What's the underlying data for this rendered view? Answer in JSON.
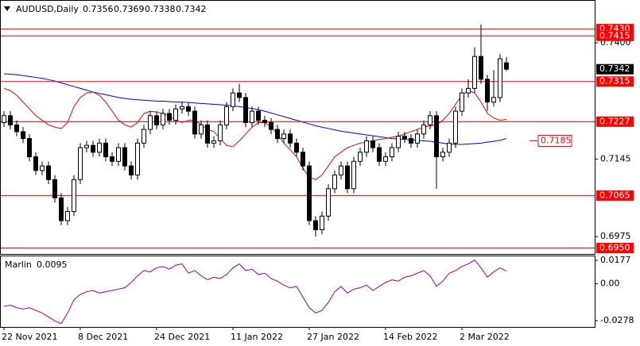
{
  "chart_data": [
    {
      "type": "candlestick",
      "title": "AUDUSD,Daily",
      "open": [
        0.7225,
        0.724,
        0.722,
        0.7205,
        0.719,
        0.715,
        0.712,
        0.713,
        0.71,
        0.706,
        0.701,
        0.703,
        0.71,
        0.717,
        0.7175,
        0.716,
        0.718,
        0.715,
        0.714,
        0.717,
        0.713,
        0.711,
        0.718,
        0.721,
        0.724,
        0.722,
        0.7245,
        0.723,
        0.7255,
        0.726,
        0.725,
        0.72,
        0.722,
        0.718,
        0.7185,
        0.722,
        0.726,
        0.729,
        0.728,
        0.7225,
        0.725,
        0.723,
        0.7225,
        0.721,
        0.719,
        0.72,
        0.718,
        0.716,
        0.713,
        0.701,
        0.699,
        0.702,
        0.708,
        0.711,
        0.713,
        0.708,
        0.714,
        0.716,
        0.7185,
        0.717,
        0.714,
        0.715,
        0.717,
        0.7195,
        0.719,
        0.718,
        0.72,
        0.722,
        0.724,
        0.715,
        0.716,
        0.718,
        0.725,
        0.729,
        0.73,
        0.737,
        0.732,
        0.727,
        0.728,
        0.7356
      ],
      "high": [
        0.725,
        0.725,
        0.723,
        0.7215,
        0.72,
        0.716,
        0.714,
        0.714,
        0.711,
        0.707,
        0.704,
        0.711,
        0.718,
        0.7185,
        0.7185,
        0.719,
        0.719,
        0.716,
        0.718,
        0.718,
        0.714,
        0.719,
        0.722,
        0.725,
        0.725,
        0.7255,
        0.7255,
        0.7265,
        0.727,
        0.727,
        0.726,
        0.723,
        0.723,
        0.7195,
        0.723,
        0.727,
        0.73,
        0.731,
        0.729,
        0.726,
        0.726,
        0.724,
        0.7235,
        0.722,
        0.721,
        0.721,
        0.719,
        0.717,
        0.714,
        0.702,
        0.703,
        0.709,
        0.712,
        0.714,
        0.714,
        0.715,
        0.717,
        0.7195,
        0.7195,
        0.718,
        0.716,
        0.718,
        0.7205,
        0.7205,
        0.72,
        0.721,
        0.723,
        0.725,
        0.725,
        0.717,
        0.719,
        0.726,
        0.73,
        0.732,
        0.739,
        0.744,
        0.733,
        0.734,
        0.7375,
        0.7369
      ],
      "low": [
        0.7215,
        0.721,
        0.7195,
        0.718,
        0.714,
        0.711,
        0.711,
        0.709,
        0.705,
        0.7,
        0.7,
        0.702,
        0.709,
        0.716,
        0.715,
        0.715,
        0.714,
        0.713,
        0.713,
        0.712,
        0.71,
        0.71,
        0.717,
        0.72,
        0.721,
        0.721,
        0.722,
        0.722,
        0.7245,
        0.724,
        0.719,
        0.719,
        0.717,
        0.717,
        0.7175,
        0.721,
        0.725,
        0.727,
        0.7215,
        0.7215,
        0.722,
        0.7215,
        0.72,
        0.718,
        0.718,
        0.717,
        0.715,
        0.712,
        0.7,
        0.6975,
        0.698,
        0.701,
        0.707,
        0.71,
        0.707,
        0.707,
        0.713,
        0.715,
        0.716,
        0.713,
        0.713,
        0.714,
        0.716,
        0.718,
        0.717,
        0.717,
        0.719,
        0.721,
        0.708,
        0.714,
        0.715,
        0.717,
        0.724,
        0.728,
        0.729,
        0.731,
        0.725,
        0.726,
        0.727,
        0.7338
      ],
      "close": [
        0.724,
        0.722,
        0.7205,
        0.719,
        0.715,
        0.712,
        0.713,
        0.71,
        0.706,
        0.701,
        0.703,
        0.71,
        0.717,
        0.7175,
        0.716,
        0.718,
        0.715,
        0.714,
        0.717,
        0.713,
        0.711,
        0.718,
        0.721,
        0.724,
        0.722,
        0.7245,
        0.723,
        0.7255,
        0.726,
        0.725,
        0.72,
        0.722,
        0.718,
        0.7185,
        0.722,
        0.726,
        0.729,
        0.728,
        0.7225,
        0.725,
        0.723,
        0.7225,
        0.721,
        0.719,
        0.72,
        0.718,
        0.716,
        0.713,
        0.701,
        0.699,
        0.702,
        0.708,
        0.711,
        0.713,
        0.708,
        0.714,
        0.716,
        0.7185,
        0.717,
        0.714,
        0.715,
        0.717,
        0.7195,
        0.719,
        0.718,
        0.72,
        0.722,
        0.724,
        0.715,
        0.716,
        0.718,
        0.725,
        0.729,
        0.73,
        0.737,
        0.732,
        0.727,
        0.728,
        0.7365,
        0.7342
      ],
      "up_color": "#ffffff",
      "down_color": "#000000",
      "lines": [
        {
          "color": "#0000ff",
          "values": [
            0.7332,
            0.7331,
            0.733,
            0.7328,
            0.7326,
            0.7324,
            0.7322,
            0.7319,
            0.7316,
            0.7312,
            0.7308,
            0.7304,
            0.73,
            0.7296,
            0.7292,
            0.7289,
            0.7286,
            0.7283,
            0.728,
            0.7278,
            0.7276,
            0.7275,
            0.7274,
            0.7273,
            0.7272,
            0.7272,
            0.7271,
            0.727,
            0.727,
            0.7269,
            0.7268,
            0.7267,
            0.7266,
            0.7265,
            0.7264,
            0.7263,
            0.7262,
            0.726,
            0.7258,
            0.7256,
            0.7253,
            0.725,
            0.7246,
            0.7242,
            0.7238,
            0.7234,
            0.723,
            0.7226,
            0.7222,
            0.7218,
            0.7215,
            0.7212,
            0.7209,
            0.7206,
            0.7204,
            0.7202,
            0.72,
            0.7198,
            0.7196,
            0.7194,
            0.7192,
            0.719,
            0.7189,
            0.7188,
            0.7187,
            0.7186,
            0.7185,
            0.7184,
            0.7182,
            0.718,
            0.7178,
            0.7177,
            0.7177,
            0.7178,
            0.7179,
            0.718,
            0.7182,
            0.7184,
            0.7186,
            0.719
          ]
        },
        {
          "color": "#ff0000",
          "values": [
            0.73,
            0.7295,
            0.7285,
            0.727,
            0.7255,
            0.724,
            0.723,
            0.722,
            0.7215,
            0.7212,
            0.7225,
            0.726,
            0.728,
            0.729,
            0.7292,
            0.7285,
            0.727,
            0.725,
            0.723,
            0.722,
            0.7215,
            0.7225,
            0.7245,
            0.725,
            0.7248,
            0.7245,
            0.724,
            0.723,
            0.7225,
            0.723,
            0.723,
            0.722,
            0.721,
            0.7205,
            0.719,
            0.7175,
            0.7172,
            0.7185,
            0.72,
            0.7215,
            0.7225,
            0.7225,
            0.7215,
            0.72,
            0.718,
            0.7165,
            0.715,
            0.7125,
            0.7105,
            0.71,
            0.711,
            0.713,
            0.715,
            0.716,
            0.717,
            0.7175,
            0.718,
            0.7182,
            0.7185,
            0.7188,
            0.719,
            0.7193,
            0.7195,
            0.72,
            0.7205,
            0.721,
            0.7215,
            0.7218,
            0.722,
            0.723,
            0.7245,
            0.7265,
            0.7285,
            0.7295,
            0.729,
            0.727,
            0.7245,
            0.7235,
            0.723,
            0.7232
          ]
        }
      ],
      "levels": [
        {
          "value": 0.743,
          "label": "0.7430"
        },
        {
          "value": 0.7415,
          "label": "0.7415"
        },
        {
          "value": 0.7315,
          "label": "0.7315"
        },
        {
          "value": 0.7227,
          "label": "0.7227"
        },
        {
          "value": 0.7065,
          "label": "0.7065"
        },
        {
          "value": 0.695,
          "label": "0.6950"
        }
      ],
      "level_color": "#ff0000",
      "marker": {
        "value": 0.7185,
        "label": "0.7185"
      },
      "last_price_color": "#000000",
      "ylim": [
        0.6937,
        0.7492
      ],
      "yticks": [
        {
          "value": 0.74,
          "label": "0.7400"
        },
        0.7145,
        0.6975
      ]
    },
    {
      "type": "line",
      "name": "Marlin",
      "color": "#990099",
      "values": [
        -0.017,
        -0.016,
        -0.018,
        -0.019,
        -0.018,
        -0.02,
        -0.022,
        -0.025,
        -0.028,
        -0.03,
        -0.022,
        -0.012,
        -0.008,
        -0.006,
        -0.005,
        -0.007,
        -0.006,
        -0.005,
        -0.004,
        -0.003,
        0.001,
        0.006,
        0.01,
        0.009,
        0.012,
        0.013,
        0.011,
        0.014,
        0.015,
        0.008,
        0.01,
        0.006,
        0.003,
        0.005,
        0.004,
        0.007,
        0.012,
        0.015,
        0.01,
        0.011,
        0.007,
        0.008,
        0.004,
        0.002,
        -0.001,
        -0.003,
        -0.002,
        -0.01,
        -0.018,
        -0.022,
        -0.02,
        -0.014,
        -0.006,
        -0.002,
        -0.007,
        -0.004,
        -0.003,
        -0.001,
        -0.005,
        -0.002,
        0.001,
        0.003,
        0.002,
        0.005,
        0.006,
        0.008,
        0.01,
        0.006,
        -0.002,
        0.002,
        0.008,
        0.01,
        0.013,
        0.015,
        0.018,
        0.012,
        0.005,
        0.009,
        0.012,
        0.0095
      ],
      "ylim": [
        -0.0325,
        0.0207
      ],
      "yticks": [
        0.0177,
        {
          "value": 0,
          "label": "0.00"
        },
        -0.0278
      ],
      "xticks": [
        {
          "value": 0,
          "label": "22 Nov 2021"
        },
        {
          "value": 12,
          "label": "8 Dec 2021"
        },
        {
          "value": 24,
          "label": "24 Dec 2021"
        },
        {
          "value": 36,
          "label": "11 Jan 2022"
        },
        {
          "value": 48,
          "label": "27 Jan 2022"
        },
        {
          "value": 60,
          "label": "14 Feb 2022"
        },
        {
          "value": 72,
          "label": "2 Mar 2022"
        }
      ]
    }
  ]
}
